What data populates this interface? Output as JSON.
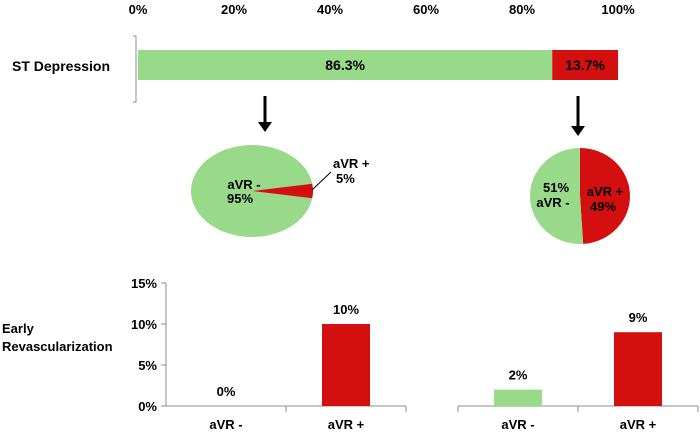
{
  "colors": {
    "green": "#99d98a",
    "red": "#d40f0f",
    "axis": "#8c8c8c",
    "text": "#000000",
    "arrow": "#000000"
  },
  "chart_data": [
    {
      "type": "bar",
      "orientation": "horizontal",
      "stacked": true,
      "category": "ST Depression",
      "xlim": [
        0,
        100
      ],
      "ticks": [
        "0%",
        "20%",
        "40%",
        "60%",
        "80%",
        "100%"
      ],
      "tick_values": [
        0,
        20,
        40,
        60,
        80,
        100
      ],
      "segments": [
        {
          "value": 86.3,
          "label": "86.3%",
          "color": "#99d98a"
        },
        {
          "value": 13.7,
          "label": "13.7%",
          "color": "#d40f0f"
        }
      ]
    },
    {
      "type": "pie",
      "slices": [
        {
          "value": 95,
          "label_name": "aVR -",
          "label_pct": "95%",
          "color": "#99d98a"
        },
        {
          "value": 5,
          "label_name": "aVR +",
          "label_pct": "5%",
          "color": "#d40f0f"
        }
      ]
    },
    {
      "type": "pie",
      "slices": [
        {
          "value": 51,
          "label_pct": "51%",
          "label_name": "aVR -",
          "color": "#99d98a"
        },
        {
          "value": 49,
          "label_name": "aVR +",
          "label_pct": "49%",
          "color": "#d40f0f"
        }
      ]
    },
    {
      "type": "bar",
      "ylabel": "Early Revascularization",
      "ylim": [
        0,
        15
      ],
      "yticks": [
        "0%",
        "5%",
        "10%",
        "15%"
      ],
      "ytick_values": [
        0,
        5,
        10,
        15
      ],
      "categories": [
        "aVR -",
        "aVR +"
      ],
      "values": [
        0,
        10
      ],
      "labels": [
        "0%",
        "10%"
      ],
      "colors": [
        "#99d98a",
        "#d40f0f"
      ]
    },
    {
      "type": "bar",
      "ylim": [
        0,
        15
      ],
      "categories": [
        "aVR -",
        "aVR +"
      ],
      "values": [
        2,
        9
      ],
      "labels": [
        "2%",
        "9%"
      ],
      "colors": [
        "#99d98a",
        "#d40f0f"
      ]
    }
  ]
}
